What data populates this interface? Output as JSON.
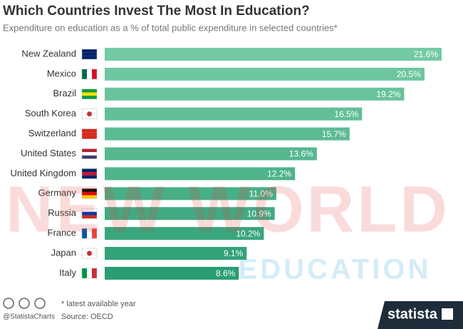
{
  "chart_data": {
    "type": "bar",
    "orientation": "horizontal",
    "title": "Which Countries Invest The Most In Education?",
    "subtitle": "Expenditure on education as a % of total public expenditure in selected countries*",
    "categories": [
      "New Zealand",
      "Mexico",
      "Brazil",
      "South Korea",
      "Switzerland",
      "United States",
      "United Kingdom",
      "Germany",
      "Russia",
      "France",
      "Japan",
      "Italy"
    ],
    "values": [
      21.6,
      20.5,
      19.2,
      16.5,
      15.7,
      13.6,
      12.2,
      11.0,
      10.9,
      10.2,
      9.1,
      8.6
    ],
    "value_labels": [
      "21.6%",
      "20.5%",
      "19.2%",
      "16.5%",
      "15.7%",
      "13.6%",
      "12.2%",
      "11.0%",
      "10.9%",
      "10.2%",
      "9.1%",
      "8.6%"
    ],
    "colors": [
      "#74caa4",
      "#6ec6a0",
      "#68c39c",
      "#62bf98",
      "#5bbb94",
      "#55b790",
      "#4fb38b",
      "#48af87",
      "#41aa82",
      "#3aa67d",
      "#32a278",
      "#2a9d73"
    ],
    "note": "* latest available year",
    "source": "Source: OECD",
    "handle": "@StatistaCharts",
    "brand": "statista",
    "watermark": [
      "NEW WORLD",
      "EDUCATION"
    ]
  }
}
